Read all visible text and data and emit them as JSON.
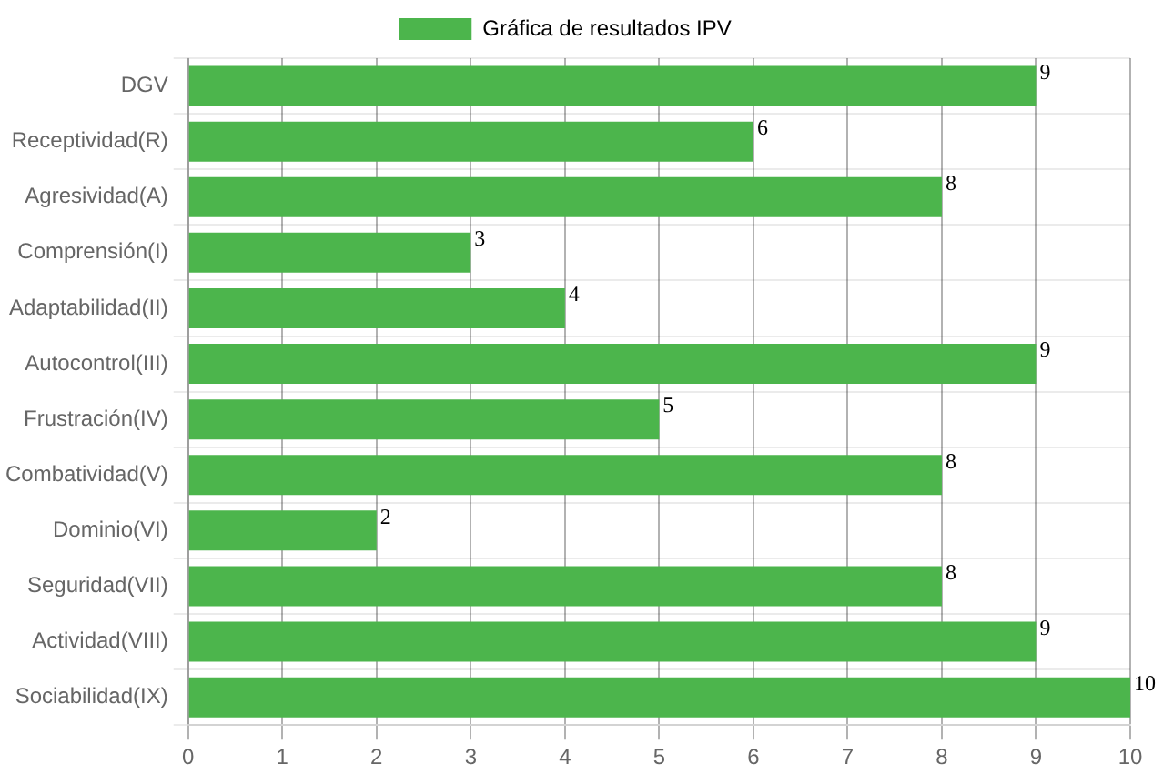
{
  "chart_data": {
    "type": "bar",
    "orientation": "horizontal",
    "legend": "top",
    "categories": [
      "DGV",
      "Receptividad(R)",
      "Agresividad(A)",
      "Comprensión(I)",
      "Adaptabilidad(II)",
      "Autocontrol(III)",
      "Frustración(IV)",
      "Combatividad(V)",
      "Dominio(VI)",
      "Seguridad(VII)",
      "Actividad(VIII)",
      "Sociabilidad(IX)"
    ],
    "series": [
      {
        "name": "Gráfica de resultados IPV",
        "color": "#4cb54c",
        "values": [
          9,
          6,
          8,
          3,
          4,
          9,
          5,
          8,
          2,
          8,
          9,
          10
        ]
      }
    ],
    "xlim": [
      0,
      10
    ],
    "xticks": [
      0,
      1,
      2,
      3,
      4,
      5,
      6,
      7,
      8,
      9,
      10
    ],
    "grid": true,
    "data_labels": true
  }
}
